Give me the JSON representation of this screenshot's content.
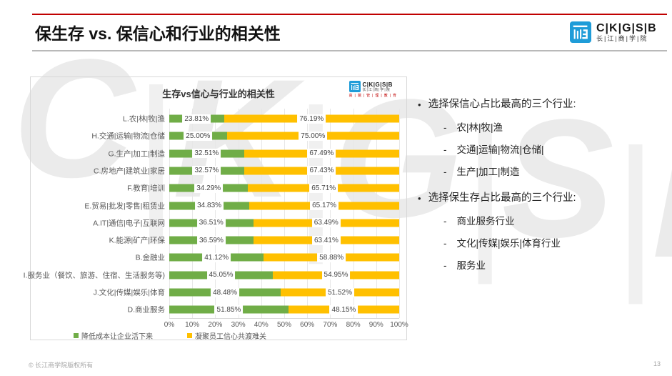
{
  "slide": {
    "title": "保生存 vs. 保信心和行业的相关性",
    "page_number": "13",
    "footer": "© 长江商学院版权所有",
    "watermark_letters": [
      "C",
      "K",
      "G",
      "S",
      "B"
    ],
    "accent_red": "#c00000"
  },
  "logo": {
    "name": "CKGSB",
    "text_en": "C|K|G|S|B",
    "text_cn": "长|江|商|学|院",
    "tagline_cn": "高|端|管|理|教|育",
    "blue": "#1f9cd8"
  },
  "chart_data": {
    "type": "bar",
    "orientation": "horizontal",
    "stacked": true,
    "title": "生存vs信心与行业的相关性",
    "categories": [
      "L.农|林|牧|渔",
      "H.交通|运输|物流|仓储",
      "G.生产|加工|制造",
      "C.房地产|建筑业|家居",
      "F.教育|培训",
      "E.贸易|批发|零售|租赁业",
      "A.IT|通信|电子|互联网",
      "K.能源|矿产|环保",
      "B.金融业",
      "I.服务业（餐饮、旅游、住宿、生活服务等)",
      "J.文化|传媒|娱乐|体育",
      "D.商业服务"
    ],
    "series": [
      {
        "name": "降低成本让企业活下来",
        "color": "#70ad47",
        "values": [
          23.81,
          25.0,
          32.51,
          32.57,
          34.29,
          34.83,
          36.51,
          36.59,
          41.12,
          45.05,
          48.48,
          51.85
        ]
      },
      {
        "name": "凝聚员工信心共渡难关",
        "color": "#ffc000",
        "values": [
          76.19,
          75.0,
          67.49,
          67.43,
          65.71,
          65.17,
          63.49,
          63.41,
          58.88,
          54.95,
          51.52,
          48.15
        ]
      }
    ],
    "x_ticks": [
      "0%",
      "10%",
      "20%",
      "30%",
      "40%",
      "50%",
      "60%",
      "70%",
      "80%",
      "90%",
      "100%"
    ],
    "xlim": [
      0,
      100
    ],
    "value_suffix": "%",
    "legend_position": "bottom",
    "grid": true
  },
  "insights": {
    "bullet_marker": "•",
    "dash_marker": "-",
    "bullets": [
      {
        "label": "选择保信心占比最高的三个行业:",
        "items": [
          "农|林|牧|渔",
          "交通|运输|物流|仓储|",
          "生产|加工|制造"
        ]
      },
      {
        "label": "选择保生存占比最高的三个行业:",
        "items": [
          "商业服务行业",
          "文化|传媒|娱乐|体育行业",
          "服务业"
        ]
      }
    ]
  }
}
